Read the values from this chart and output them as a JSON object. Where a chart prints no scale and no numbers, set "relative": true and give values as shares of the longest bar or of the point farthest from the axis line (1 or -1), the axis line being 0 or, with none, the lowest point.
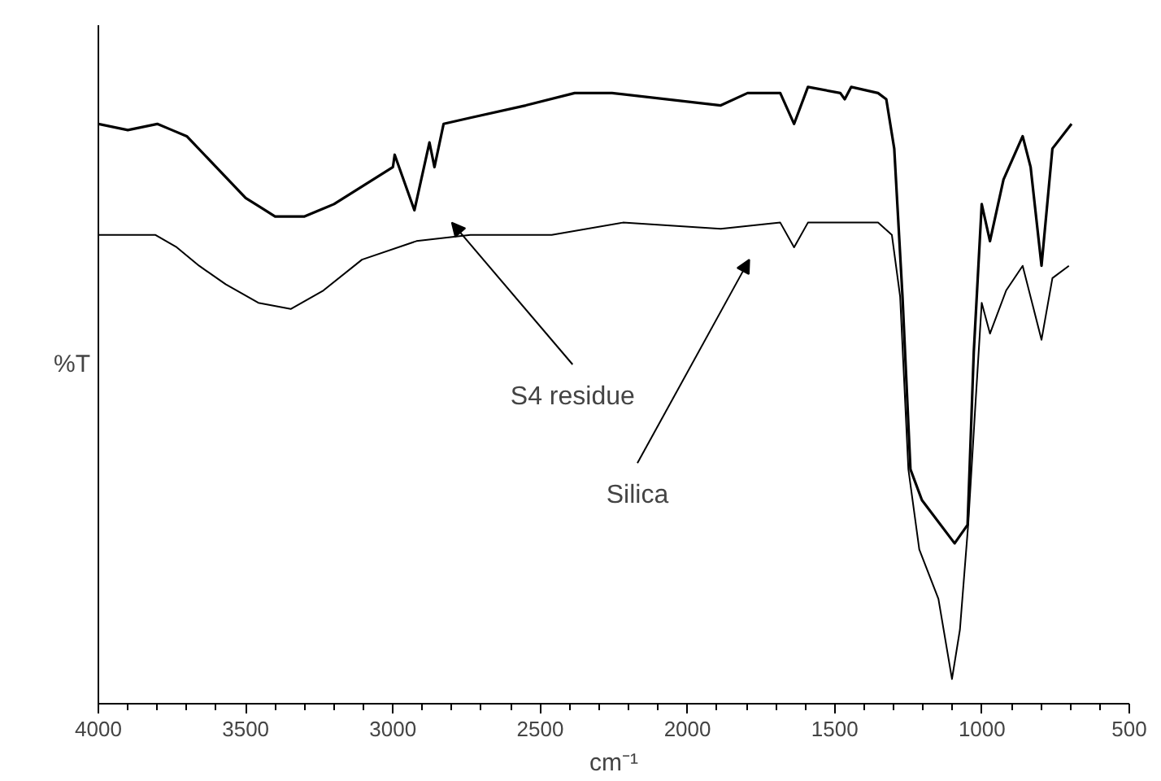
{
  "chart_data": {
    "type": "line",
    "relative": true,
    "xlabel": "cm⁻¹",
    "ylabel": "%T",
    "xlim": [
      4000,
      500
    ],
    "xticks": [
      4000,
      3500,
      3000,
      2500,
      2000,
      1500,
      1000,
      500
    ],
    "grid": false,
    "marker": "none",
    "line_style": "solid",
    "series": [
      {
        "color": "#000000",
        "x": [
          4000,
          3900,
          3800,
          3750,
          3700,
          3600,
          3500,
          3400,
          3300,
          3200,
          3100,
          3000,
          2994,
          2927,
          2876,
          2859,
          2828,
          2737,
          2549,
          2383,
          2256,
          1887,
          1796,
          1685,
          1638,
          1591,
          1481,
          1466,
          1444,
          1353,
          1325,
          1298,
          1270,
          1243,
          1204,
          1093,
          1049,
          1028,
          1001,
          973,
          927,
          862,
          835,
          798,
          761,
          696
        ],
        "values": [
          0.94,
          0.93,
          0.94,
          0.93,
          0.92,
          0.87,
          0.82,
          0.79,
          0.79,
          0.81,
          0.84,
          0.87,
          0.89,
          0.8,
          0.91,
          0.87,
          0.94,
          0.95,
          0.97,
          0.99,
          0.99,
          0.97,
          0.99,
          0.99,
          0.94,
          1.0,
          0.99,
          0.98,
          1.0,
          0.99,
          0.98,
          0.9,
          0.66,
          0.38,
          0.33,
          0.26,
          0.29,
          0.57,
          0.81,
          0.75,
          0.85,
          0.92,
          0.87,
          0.71,
          0.9,
          0.94
        ]
      },
      {
        "color": "#000000",
        "x": [
          4000,
          3880,
          3806,
          3734,
          3658,
          3568,
          3457,
          3347,
          3236,
          3105,
          2920,
          2737,
          2461,
          2219,
          1887,
          1685,
          1638,
          1591,
          1353,
          1306,
          1278,
          1250,
          1213,
          1148,
          1102,
          1075,
          1047,
          1023,
          1001,
          973,
          918,
          862,
          798,
          761,
          705
        ],
        "values": [
          0.76,
          0.76,
          0.76,
          0.74,
          0.71,
          0.68,
          0.65,
          0.64,
          0.67,
          0.72,
          0.75,
          0.76,
          0.76,
          0.78,
          0.77,
          0.78,
          0.74,
          0.78,
          0.78,
          0.76,
          0.66,
          0.38,
          0.25,
          0.17,
          0.04,
          0.12,
          0.29,
          0.48,
          0.65,
          0.6,
          0.67,
          0.71,
          0.59,
          0.69,
          0.71
        ]
      }
    ],
    "annotations": [
      "S4 residue",
      "Silica"
    ]
  }
}
